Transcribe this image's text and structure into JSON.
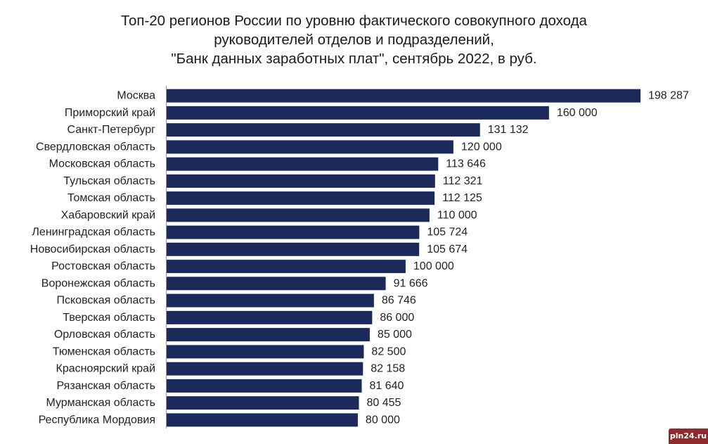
{
  "watermark": "pln24.ru",
  "chart_data": {
    "type": "bar",
    "orientation": "horizontal",
    "title": "Топ-20 регионов России по уровню фактического совокупного дохода руководителей отделов и подразделений, \"Банк данных заработных плат\", сентябрь 2022, в руб.",
    "title_lines": [
      "Топ-20 регионов России по уровню фактического совокупного дохода",
      "руководителей отделов и подразделений,",
      "\"Банк данных заработных плат\", сентябрь 2022, в руб."
    ],
    "xlabel": "",
    "ylabel": "",
    "grid": false,
    "legend": "none",
    "bar_color": "#1b2a5a",
    "categories": [
      "Москва",
      "Приморский край",
      "Санкт-Петербург",
      "Свердловская область",
      "Московская область",
      "Тульская область",
      "Томская область",
      "Хабаровский край",
      "Ленинградская область",
      "Новосибирская область",
      "Ростовская область",
      "Воронежская область",
      "Псковская область",
      "Тверская область",
      "Орловская область",
      "Тюменская область",
      "Красноярский край",
      "Рязанская область",
      "Мурманская область",
      "Республика Мордовия"
    ],
    "values": [
      198287,
      160000,
      131132,
      120000,
      113646,
      112321,
      112125,
      110000,
      105724,
      105674,
      100000,
      91666,
      86746,
      86000,
      85000,
      82500,
      82158,
      81640,
      80455,
      80000
    ],
    "value_labels": [
      "198 287",
      "160 000",
      "131 132",
      "120 000",
      "113 646",
      "112 321",
      "112 125",
      "110 000",
      "105 724",
      "105 674",
      "100 000",
      "91 666",
      "86 746",
      "86 000",
      "85 000",
      "82 500",
      "82 158",
      "81 640",
      "80 455",
      "80 000"
    ]
  }
}
